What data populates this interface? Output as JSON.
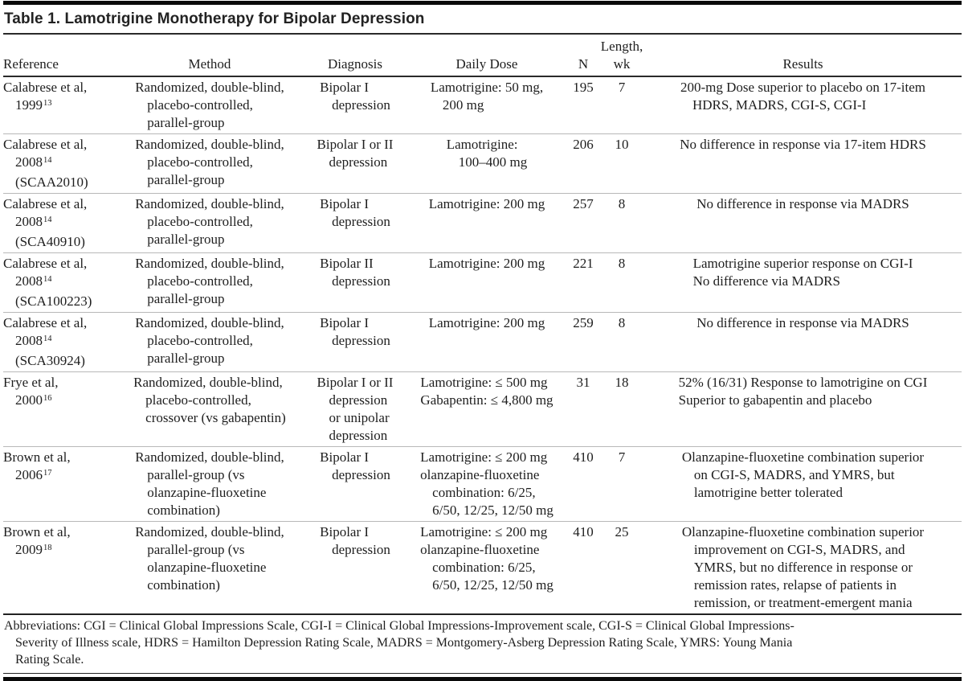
{
  "title": "Table 1. Lamotrigine Monotherapy for Bipolar Depression",
  "table": {
    "columns": [
      {
        "key": "reference",
        "label_lines": [
          "Reference"
        ]
      },
      {
        "key": "method",
        "label_lines": [
          "Method"
        ]
      },
      {
        "key": "diagnosis",
        "label_lines": [
          "Diagnosis"
        ]
      },
      {
        "key": "dose",
        "label_lines": [
          "Daily Dose"
        ]
      },
      {
        "key": "n",
        "label_lines": [
          "N"
        ]
      },
      {
        "key": "length",
        "label_lines": [
          "Length,",
          "wk"
        ]
      },
      {
        "key": "results",
        "label_lines": [
          "Results"
        ]
      }
    ],
    "rows": [
      {
        "reference": [
          {
            "t": "Calabrese et al,"
          },
          {
            "t": "1999",
            "sup": "13",
            "ind": true
          }
        ],
        "method": [
          {
            "t": "Randomized, double-blind,"
          },
          {
            "t": "placebo-controlled,",
            "ind": true
          },
          {
            "t": "parallel-group",
            "ind": true
          }
        ],
        "diagnosis": [
          {
            "t": "Bipolar I"
          },
          {
            "t": "depression",
            "ind": true
          }
        ],
        "dose": [
          {
            "t": "Lamotrigine: 50 mg,"
          },
          {
            "t": "200 mg",
            "ind": true
          }
        ],
        "n": "195",
        "length": "7",
        "results": [
          {
            "t": "200-mg Dose superior to placebo on 17-item"
          },
          {
            "t": "HDRS, MADRS, CGI-S, CGI-I",
            "ind": true
          }
        ]
      },
      {
        "reference": [
          {
            "t": "Calabrese et al,"
          },
          {
            "t": "2008",
            "sup": "14",
            "ind": true
          },
          {
            "t": "(SCAA2010)",
            "ind": true
          }
        ],
        "method": [
          {
            "t": "Randomized, double-blind,"
          },
          {
            "t": "placebo-controlled,",
            "ind": true
          },
          {
            "t": "parallel-group",
            "ind": true
          }
        ],
        "diagnosis": [
          {
            "t": "Bipolar I or II"
          },
          {
            "t": "depression",
            "ind": true
          }
        ],
        "dose": [
          {
            "t": "Lamotrigine:"
          },
          {
            "t": "100–400 mg",
            "ind": true
          }
        ],
        "n": "206",
        "length": "10",
        "results": [
          {
            "t": "No difference in response via 17-item HDRS"
          }
        ]
      },
      {
        "reference": [
          {
            "t": "Calabrese et al,"
          },
          {
            "t": "2008",
            "sup": "14",
            "ind": true
          },
          {
            "t": "(SCA40910)",
            "ind": true
          }
        ],
        "method": [
          {
            "t": "Randomized, double-blind,"
          },
          {
            "t": "placebo-controlled,",
            "ind": true
          },
          {
            "t": "parallel-group",
            "ind": true
          }
        ],
        "diagnosis": [
          {
            "t": "Bipolar I"
          },
          {
            "t": "depression",
            "ind": true
          }
        ],
        "dose": [
          {
            "t": "Lamotrigine: 200 mg"
          }
        ],
        "n": "257",
        "length": "8",
        "results": [
          {
            "t": "No difference in response via MADRS"
          }
        ]
      },
      {
        "reference": [
          {
            "t": "Calabrese et al,"
          },
          {
            "t": "2008",
            "sup": "14",
            "ind": true
          },
          {
            "t": "(SCA100223)",
            "ind": true
          }
        ],
        "method": [
          {
            "t": "Randomized, double-blind,"
          },
          {
            "t": "placebo-controlled,",
            "ind": true
          },
          {
            "t": "parallel-group",
            "ind": true
          }
        ],
        "diagnosis": [
          {
            "t": "Bipolar II"
          },
          {
            "t": "depression",
            "ind": true
          }
        ],
        "dose": [
          {
            "t": "Lamotrigine: 200 mg"
          }
        ],
        "n": "221",
        "length": "8",
        "results": [
          {
            "t": "Lamotrigine superior response on CGI-I"
          },
          {
            "t": "No difference via MADRS"
          }
        ]
      },
      {
        "reference": [
          {
            "t": "Calabrese et al,"
          },
          {
            "t": "2008",
            "sup": "14",
            "ind": true
          },
          {
            "t": "(SCA30924)",
            "ind": true
          }
        ],
        "method": [
          {
            "t": "Randomized, double-blind,"
          },
          {
            "t": "placebo-controlled,",
            "ind": true
          },
          {
            "t": "parallel-group",
            "ind": true
          }
        ],
        "diagnosis": [
          {
            "t": "Bipolar I"
          },
          {
            "t": "depression",
            "ind": true
          }
        ],
        "dose": [
          {
            "t": "Lamotrigine: 200 mg"
          }
        ],
        "n": "259",
        "length": "8",
        "results": [
          {
            "t": "No difference in response via MADRS"
          }
        ]
      },
      {
        "reference": [
          {
            "t": "Frye et al,"
          },
          {
            "t": "2000",
            "sup": "16",
            "ind": true
          }
        ],
        "method": [
          {
            "t": "Randomized, double-blind,"
          },
          {
            "t": "placebo-controlled,",
            "ind": true
          },
          {
            "t": "crossover (vs gabapentin)",
            "ind": true
          }
        ],
        "diagnosis": [
          {
            "t": "Bipolar I or II"
          },
          {
            "t": "depression",
            "ind": true
          },
          {
            "t": "or unipolar",
            "ind": true
          },
          {
            "t": "depression",
            "ind": true
          }
        ],
        "dose": [
          {
            "t": "Lamotrigine: ≤ 500 mg"
          },
          {
            "t": "Gabapentin: ≤ 4,800 mg"
          }
        ],
        "n": "31",
        "length": "18",
        "results": [
          {
            "t": "52% (16/31) Response to lamotrigine on CGI"
          },
          {
            "t": "Superior to gabapentin and placebo"
          }
        ]
      },
      {
        "reference": [
          {
            "t": "Brown et al,"
          },
          {
            "t": "2006",
            "sup": "17",
            "ind": true
          }
        ],
        "method": [
          {
            "t": "Randomized, double-blind,"
          },
          {
            "t": "parallel-group (vs",
            "ind": true
          },
          {
            "t": "olanzapine-fluoxetine",
            "ind": true
          },
          {
            "t": "combination)",
            "ind": true
          }
        ],
        "diagnosis": [
          {
            "t": "Bipolar I"
          },
          {
            "t": "depression",
            "ind": true
          }
        ],
        "dose": [
          {
            "t": "Lamotrigine: ≤ 200 mg"
          },
          {
            "t": "olanzapine-fluoxetine"
          },
          {
            "t": "combination: 6/25,",
            "ind": true
          },
          {
            "t": "6/50, 12/25, 12/50 mg",
            "ind": true
          }
        ],
        "n": "410",
        "length": "7",
        "results": [
          {
            "t": "Olanzapine-fluoxetine combination superior"
          },
          {
            "t": "on CGI-S, MADRS, and YMRS, but",
            "ind": true
          },
          {
            "t": "lamotrigine better tolerated",
            "ind": true
          }
        ]
      },
      {
        "reference": [
          {
            "t": "Brown et al,"
          },
          {
            "t": "2009",
            "sup": "18",
            "ind": true
          }
        ],
        "method": [
          {
            "t": "Randomized, double-blind,"
          },
          {
            "t": "parallel-group (vs",
            "ind": true
          },
          {
            "t": "olanzapine-fluoxetine",
            "ind": true
          },
          {
            "t": "combination)",
            "ind": true
          }
        ],
        "diagnosis": [
          {
            "t": "Bipolar I"
          },
          {
            "t": "depression",
            "ind": true
          }
        ],
        "dose": [
          {
            "t": "Lamotrigine: ≤ 200 mg"
          },
          {
            "t": "olanzapine-fluoxetine"
          },
          {
            "t": "combination: 6/25,",
            "ind": true
          },
          {
            "t": "6/50, 12/25, 12/50 mg",
            "ind": true
          }
        ],
        "n": "410",
        "length": "25",
        "results": [
          {
            "t": "Olanzapine-fluoxetine combination superior"
          },
          {
            "t": "improvement on CGI-S, MADRS, and",
            "ind": true
          },
          {
            "t": "YMRS, but no difference in response or",
            "ind": true
          },
          {
            "t": "remission rates, relapse of patients in",
            "ind": true
          },
          {
            "t": "remission, or treatment-emergent mania",
            "ind": true
          }
        ]
      }
    ]
  },
  "footnote": {
    "lines": [
      {
        "t": "Abbreviations: CGI = Clinical Global Impressions Scale, CGI-I = Clinical Global Impressions-Improvement scale, CGI-S = Clinical Global Impressions-"
      },
      {
        "t": "Severity of Illness scale, HDRS = Hamilton Depression Rating Scale, MADRS = Montgomery-Asberg Depression Rating Scale, YMRS: Young Mania",
        "ind": true
      },
      {
        "t": "Rating Scale.",
        "ind": true
      }
    ]
  },
  "colors": {
    "text": "#1e1e1e",
    "rule_black": "#0a0a0a",
    "row_separator": "#b8b8b8",
    "background": "#ffffff"
  }
}
